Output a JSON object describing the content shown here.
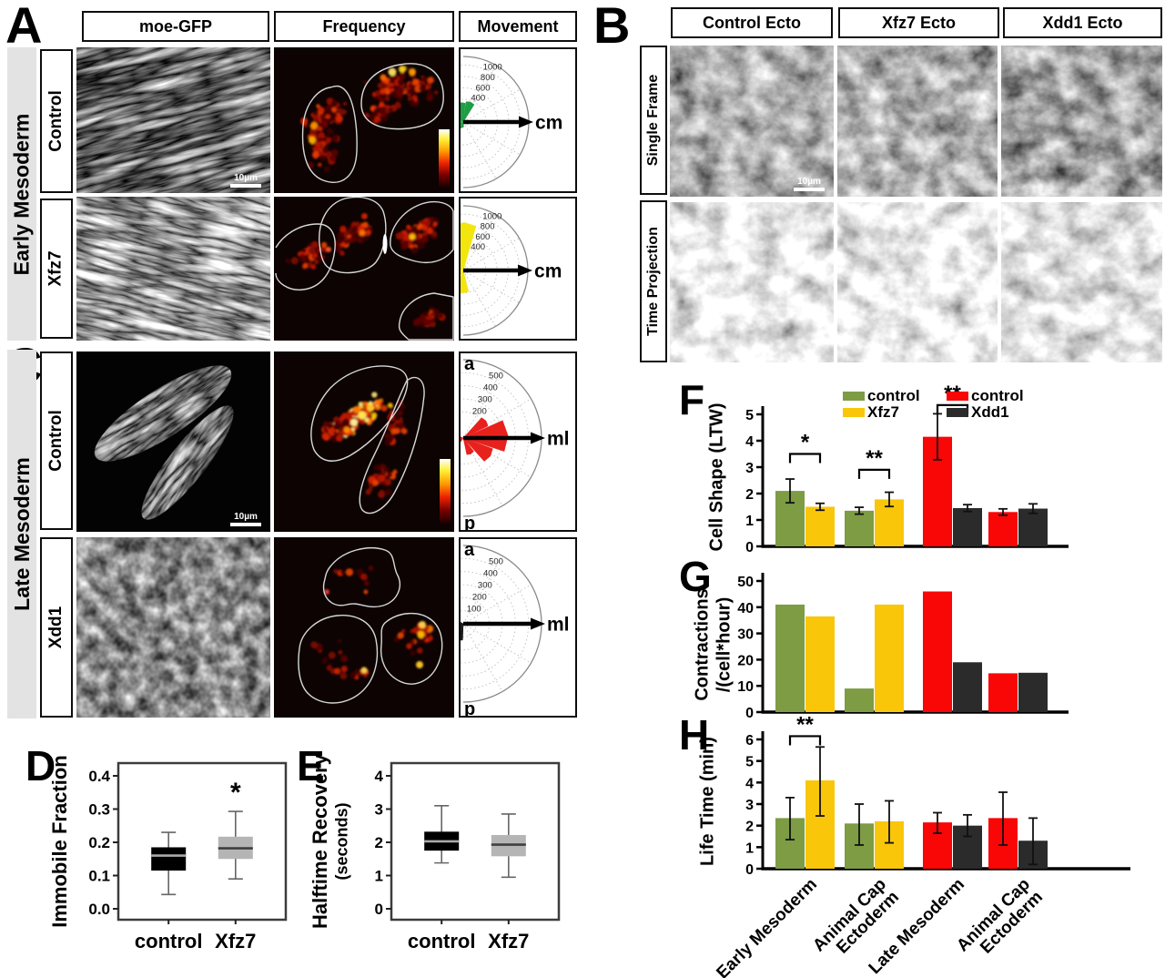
{
  "colors": {
    "green": "#7d9c44",
    "yellow": "#f9c60a",
    "red": "#f90606",
    "dark": "#2b2b2b"
  },
  "panelA": {
    "letter": "A",
    "col_headers": [
      "moe-GFP",
      "Frequency",
      "Movement"
    ],
    "side_label": "Early Mesoderm",
    "rows": [
      {
        "label": "Control",
        "scale_bar": "10µm",
        "rose": {
          "color": "#1f9e45",
          "axis_label": "cm",
          "tick_values": [
            400,
            600,
            800,
            1000
          ],
          "max_value": 1150,
          "wedges": [
            [
              58,
              82,
              360
            ],
            [
              84,
              106,
              330
            ],
            [
              108,
              130,
              300
            ],
            [
              132,
              152,
              170
            ],
            [
              168,
              190,
              140
            ],
            [
              204,
              228,
              150
            ],
            [
              236,
              256,
              110
            ],
            [
              258,
              274,
              90
            ]
          ]
        }
      },
      {
        "label": "Xfz7",
        "rose": {
          "color": "#f3e50e",
          "axis_label": "cm",
          "tick_values": [
            400,
            600,
            800,
            1000
          ],
          "max_value": 1150,
          "wedges": [
            [
              74,
              104,
              820
            ],
            [
              106,
              130,
              530
            ],
            [
              132,
              158,
              310
            ],
            [
              162,
              192,
              270
            ],
            [
              248,
              284,
              390
            ],
            [
              212,
              238,
              180
            ]
          ]
        }
      }
    ]
  },
  "panelB": {
    "letter": "B",
    "col_headers": [
      "Control Ecto",
      "Xfz7 Ecto",
      "Xdd1 Ecto"
    ],
    "row_labels": [
      "Single Frame",
      "Time Projection"
    ],
    "scale_bar": "10µm"
  },
  "panelC": {
    "letter": "C",
    "side_label": "Late Mesoderm",
    "rows": [
      {
        "label": "Control",
        "scale_bar": "10µm",
        "rose": {
          "color": "#e8211d",
          "axis_label": "ml",
          "pole_top": "a",
          "pole_bottom": "p",
          "tick_values": [
            200,
            300,
            400,
            500
          ],
          "max_value": 600,
          "wedges": [
            [
              -18,
              24,
              330
            ],
            [
              26,
              48,
              210
            ],
            [
              -48,
              -20,
              240
            ],
            [
              155,
              197,
              140
            ],
            [
              200,
              236,
              160
            ],
            [
              -78,
              -52,
              130
            ]
          ]
        }
      },
      {
        "label": "Xdd1",
        "rose": {
          "color": "#1b1b1b",
          "axis_label": "ml",
          "pole_top": "a",
          "pole_bottom": "p",
          "tick_values": [
            100,
            200,
            300,
            400,
            500
          ],
          "max_value": 600,
          "wedges": [
            [
              150,
              184,
              150
            ],
            [
              186,
              214,
              175
            ],
            [
              216,
              244,
              195
            ],
            [
              246,
              268,
              125
            ]
          ]
        }
      }
    ]
  },
  "panelD": {
    "letter": "D",
    "y_label": "Immobile Fraction",
    "x_labels": [
      "control",
      "Xfz7"
    ],
    "chart_data": {
      "type": "box",
      "y_ticks": [
        0,
        0.1,
        0.2,
        0.3,
        0.4
      ],
      "y_tick_labels": [
        "0.0",
        "0.1",
        "0.2",
        "0.3",
        "0.4"
      ],
      "boxes": [
        {
          "label": "control",
          "fill": "#000000",
          "median_color": "#aaaaaa",
          "whisker_low": 0.043,
          "q1": 0.115,
          "median": 0.16,
          "q3": 0.185,
          "whisker_high": 0.23,
          "annotation": ""
        },
        {
          "label": "Xfz7",
          "fill": "#b5b5b5",
          "median_color": "#3f3f3f",
          "whisker_low": 0.09,
          "q1": 0.15,
          "median": 0.182,
          "q3": 0.217,
          "whisker_high": 0.293,
          "annotation": "*"
        }
      ]
    }
  },
  "panelE": {
    "letter": "E",
    "y_label_line1": "Halftime Recovery",
    "y_label_line2": "(seconds)",
    "x_labels": [
      "control",
      "Xfz7"
    ],
    "chart_data": {
      "type": "box",
      "y_ticks": [
        0,
        1,
        2,
        3,
        4
      ],
      "y_tick_labels": [
        "0",
        "1",
        "2",
        "3",
        "4"
      ],
      "boxes": [
        {
          "label": "control",
          "fill": "#000000",
          "median_color": "#aaaaaa",
          "whisker_low": 1.38,
          "q1": 1.75,
          "median": 2.03,
          "q3": 2.32,
          "whisker_high": 3.1,
          "annotation": ""
        },
        {
          "label": "Xfz7",
          "fill": "#b5b5b5",
          "median_color": "#3f3f3f",
          "whisker_low": 0.95,
          "q1": 1.58,
          "median": 1.93,
          "q3": 2.22,
          "whisker_high": 2.85,
          "annotation": ""
        }
      ]
    }
  },
  "panelF": {
    "letter": "F",
    "y_label": "Cell Shape (LTW)",
    "legend": [
      {
        "label": "control",
        "color": "#7d9c44"
      },
      {
        "label": "Xfz7",
        "color": "#f9c60a"
      },
      {
        "label": "control",
        "color": "#f90606"
      },
      {
        "label": "Xdd1",
        "color": "#2b2b2b"
      }
    ],
    "chart_data": {
      "type": "bar",
      "y_ticks": [
        0,
        1,
        2,
        3,
        4,
        5
      ],
      "groups": [
        {
          "colors": [
            "green",
            "yellow"
          ],
          "values": [
            2.1,
            1.5
          ],
          "err_low": [
            0.45,
            0.13
          ],
          "err_high": [
            0.45,
            0.13
          ]
        },
        {
          "colors": [
            "green",
            "yellow"
          ],
          "values": [
            1.35,
            1.78
          ],
          "err_low": [
            0.13,
            0.27
          ],
          "err_high": [
            0.13,
            0.27
          ]
        },
        {
          "colors": [
            "red",
            "dark"
          ],
          "values": [
            4.15,
            1.45
          ],
          "err_low": [
            0.87,
            0.13
          ],
          "err_high": [
            0.87,
            0.13
          ]
        },
        {
          "colors": [
            "red",
            "dark"
          ],
          "values": [
            1.3,
            1.43
          ],
          "err_low": [
            0.12,
            0.18
          ],
          "err_high": [
            0.12,
            0.18
          ]
        }
      ],
      "brackets": [
        {
          "group": 0,
          "label": "*",
          "y": 3.5
        },
        {
          "group": 1,
          "label": "**",
          "y": 2.9
        },
        {
          "group": 2,
          "label": "**",
          "y": 5.35
        }
      ]
    }
  },
  "panelG": {
    "letter": "G",
    "y_label_line1": "Contractions",
    "y_label_line2": "/(cell*hour)",
    "chart_data": {
      "type": "bar",
      "y_ticks": [
        0,
        10,
        20,
        30,
        40,
        50
      ],
      "groups": [
        {
          "colors": [
            "green",
            "yellow"
          ],
          "values": [
            41,
            36.5
          ]
        },
        {
          "colors": [
            "green",
            "yellow"
          ],
          "values": [
            9,
            41
          ]
        },
        {
          "colors": [
            "red",
            "dark"
          ],
          "values": [
            46,
            19
          ]
        },
        {
          "colors": [
            "red",
            "dark"
          ],
          "values": [
            14.8,
            15
          ]
        }
      ],
      "brackets": []
    }
  },
  "panelH": {
    "letter": "H",
    "y_label": "Life Time (min)",
    "x_labels": [
      [
        "Early Mesoderm"
      ],
      [
        "Animal Cap",
        "Ectoderm"
      ],
      [
        "Late Mesoderm"
      ],
      [
        "Animal Cap",
        "Ectoderm"
      ]
    ],
    "chart_data": {
      "type": "bar",
      "y_ticks": [
        0,
        1,
        2,
        3,
        4,
        5,
        6
      ],
      "groups": [
        {
          "colors": [
            "green",
            "yellow"
          ],
          "values": [
            2.35,
            4.1
          ],
          "err_low": [
            1.0,
            1.65
          ],
          "err_high": [
            0.95,
            1.55
          ]
        },
        {
          "colors": [
            "green",
            "yellow"
          ],
          "values": [
            2.1,
            2.2
          ],
          "err_low": [
            1.0,
            1.0
          ],
          "err_high": [
            0.9,
            0.95
          ]
        },
        {
          "colors": [
            "red",
            "dark"
          ],
          "values": [
            2.15,
            2.0
          ],
          "err_low": [
            0.5,
            0.5
          ],
          "err_high": [
            0.45,
            0.5
          ]
        },
        {
          "colors": [
            "red",
            "dark"
          ],
          "values": [
            2.35,
            1.3
          ],
          "err_low": [
            1.25,
            1.1
          ],
          "err_high": [
            1.2,
            1.05
          ]
        }
      ],
      "brackets": [
        {
          "group": 0,
          "label": "**",
          "y": 6.15
        }
      ]
    }
  }
}
